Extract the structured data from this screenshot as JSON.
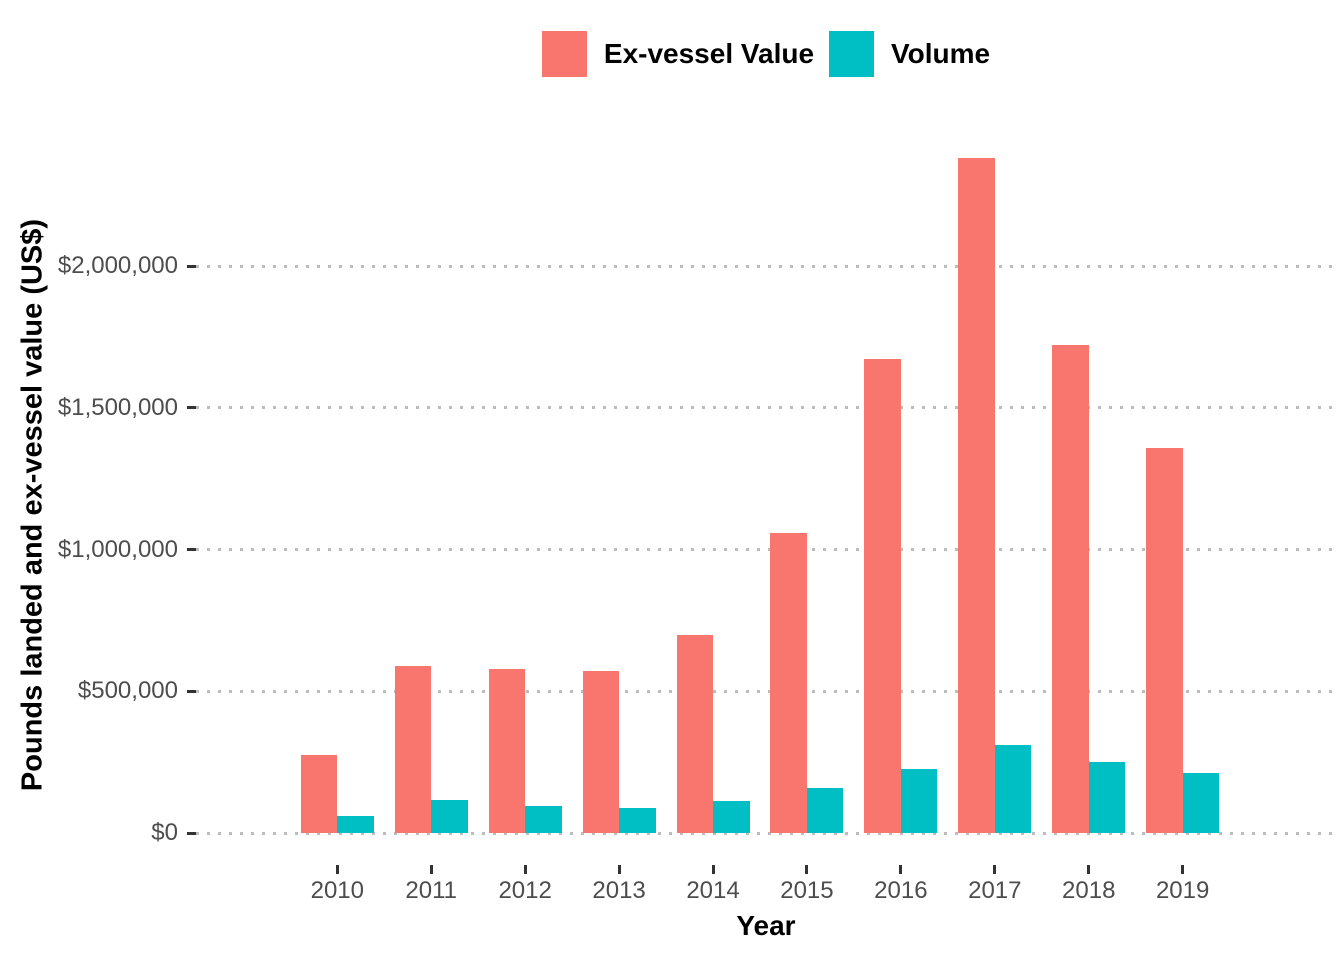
{
  "chart_data": {
    "type": "bar",
    "title": "",
    "categories": [
      "2010",
      "2011",
      "2012",
      "2013",
      "2014",
      "2015",
      "2016",
      "2017",
      "2018",
      "2019"
    ],
    "series": [
      {
        "name": "Ex-vessel Value",
        "color": "#F8766D",
        "values": [
          275000,
          590000,
          578000,
          571000,
          698000,
          1060000,
          1672000,
          2381000,
          1722000,
          1358000
        ]
      },
      {
        "name": "Volume",
        "color": "#00BFC4",
        "values": [
          59000,
          115000,
          96000,
          89000,
          112000,
          159000,
          226000,
          309000,
          249000,
          211000
        ]
      }
    ],
    "xlabel": "Year",
    "ylabel": "Pounds landed and ex-vessel value (US$)",
    "ylim": [
      0,
      2500000
    ],
    "y_ticks": {
      "values": [
        0,
        500000,
        1000000,
        1500000,
        2000000
      ],
      "labels": [
        "$0",
        "$500,000",
        "$1,000,000",
        "$1,500,000",
        "$2,000,000"
      ]
    },
    "grid": "horizontal-dotted",
    "legend_position": "top-center",
    "colors": {
      "ex_vessel_value": "#F8766D",
      "volume": "#00BFC4",
      "tick_label": "#4D4D4D",
      "tick_mark": "#333333",
      "gridline": "#BDBDBD",
      "background": "#FFFFFF"
    }
  }
}
